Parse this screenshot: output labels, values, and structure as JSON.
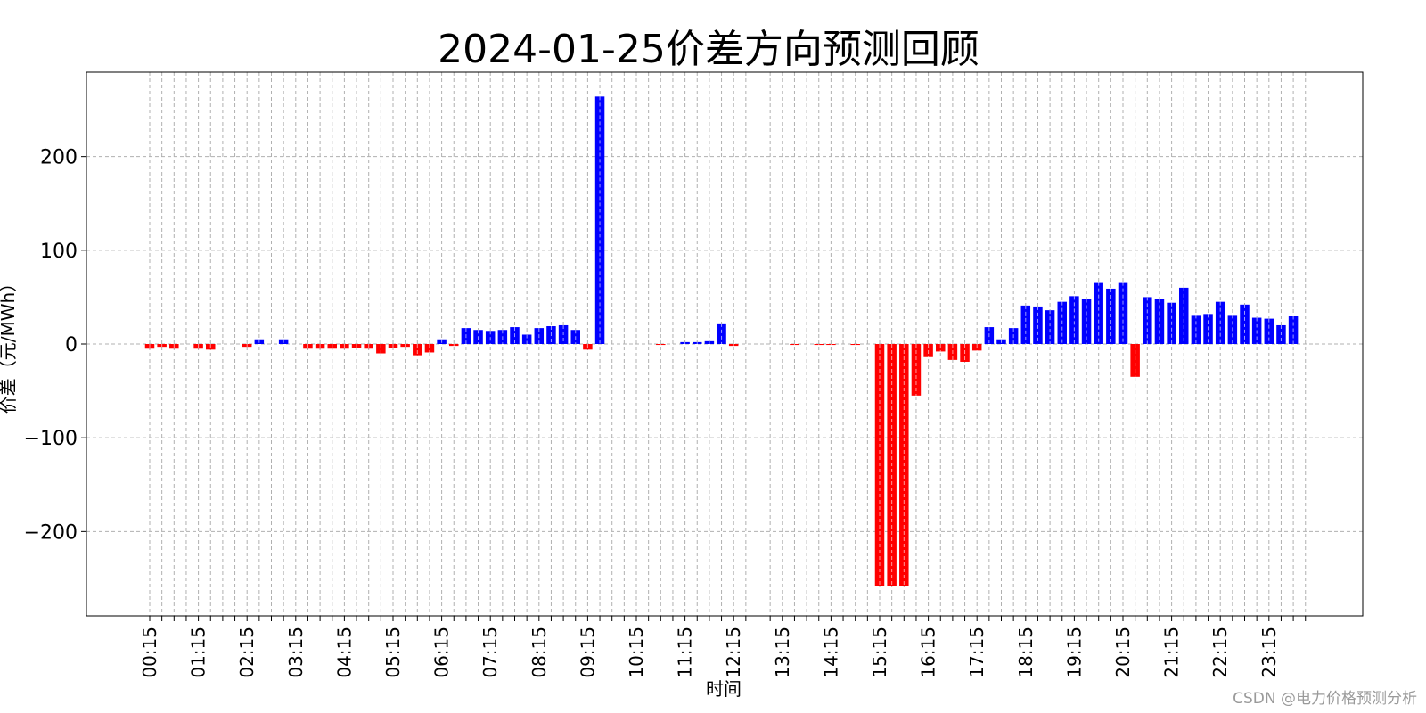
{
  "chart_data": {
    "type": "bar",
    "title": "2024-01-25价差方向预测回顾",
    "xlabel": "时间",
    "ylabel": "价差（元/MWh）",
    "ylim": [
      -290,
      290
    ],
    "yticks": [
      -200,
      -100,
      0,
      100,
      200
    ],
    "grid": true,
    "colors": {
      "positive": "#0000ff",
      "negative": "#ff0000"
    },
    "xtick_labels": [
      "00:15",
      "01:15",
      "02:15",
      "03:15",
      "04:15",
      "05:15",
      "06:15",
      "07:15",
      "08:15",
      "09:15",
      "10:15",
      "11:15",
      "12:15",
      "13:15",
      "14:15",
      "15:15",
      "16:15",
      "17:15",
      "18:15",
      "19:15",
      "20:15",
      "21:15",
      "22:15",
      "23:15"
    ],
    "categories": [
      "00:15",
      "00:30",
      "00:45",
      "01:00",
      "01:15",
      "01:30",
      "01:45",
      "02:00",
      "02:15",
      "02:30",
      "02:45",
      "03:00",
      "03:15",
      "03:30",
      "03:45",
      "04:00",
      "04:15",
      "04:30",
      "04:45",
      "05:00",
      "05:15",
      "05:30",
      "05:45",
      "06:00",
      "06:15",
      "06:30",
      "06:45",
      "07:00",
      "07:15",
      "07:30",
      "07:45",
      "08:00",
      "08:15",
      "08:30",
      "08:45",
      "09:00",
      "09:15",
      "09:30",
      "09:45",
      "10:00",
      "10:15",
      "10:30",
      "10:45",
      "11:00",
      "11:15",
      "11:30",
      "11:45",
      "12:00",
      "12:15",
      "12:30",
      "12:45",
      "13:00",
      "13:15",
      "13:30",
      "13:45",
      "14:00",
      "14:15",
      "14:30",
      "14:45",
      "15:00",
      "15:15",
      "15:30",
      "15:45",
      "16:00",
      "16:15",
      "16:30",
      "16:45",
      "17:00",
      "17:15",
      "17:30",
      "17:45",
      "18:00",
      "18:15",
      "18:30",
      "18:45",
      "19:00",
      "19:15",
      "19:30",
      "19:45",
      "20:00",
      "20:15",
      "20:30",
      "20:45",
      "21:00",
      "21:15",
      "21:30",
      "21:45",
      "22:00",
      "22:15",
      "22:30",
      "22:45",
      "23:00",
      "23:15",
      "23:30",
      "23:45",
      "24:00"
    ],
    "values": [
      -5,
      -3,
      -5,
      0,
      -5,
      -6,
      0,
      0,
      -3,
      5,
      0,
      5,
      0,
      -5,
      -5,
      -5,
      -5,
      -4,
      -5,
      -10,
      -4,
      -3,
      -12,
      -9,
      5,
      -2,
      17,
      15,
      14,
      15,
      18,
      10,
      17,
      19,
      20,
      15,
      -6,
      264,
      0,
      0,
      0,
      0,
      -1,
      0,
      2,
      2,
      3,
      22,
      -2,
      0,
      0,
      0,
      0,
      -1,
      0,
      -1,
      -1,
      0,
      -1,
      0,
      -258,
      -258,
      -258,
      -55,
      -14,
      -8,
      -17,
      -19,
      -7,
      18,
      5,
      17,
      41,
      40,
      36,
      45,
      51,
      48,
      66,
      59,
      66,
      -35,
      50,
      48,
      44,
      60,
      31,
      32,
      45,
      31,
      42,
      28,
      27,
      20,
      30,
      0
    ]
  },
  "watermark": "CSDN @电力价格预测分析"
}
